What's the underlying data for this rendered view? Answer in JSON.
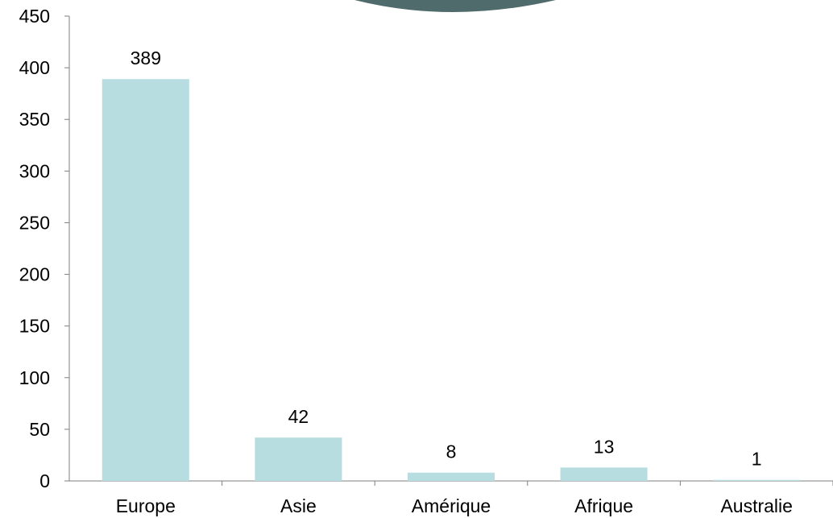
{
  "chart_data": {
    "type": "bar",
    "categories": [
      "Europe",
      "Asie",
      "Amérique",
      "Afrique",
      "Australie"
    ],
    "values": [
      389,
      42,
      8,
      13,
      1
    ],
    "data_labels": [
      "389",
      "42",
      "8",
      "13",
      "1"
    ],
    "title": "",
    "xlabel": "",
    "ylabel": "",
    "ylim": [
      0,
      450
    ],
    "yticks": [
      0,
      50,
      100,
      150,
      200,
      250,
      300,
      350,
      400,
      450
    ],
    "grid": false,
    "legend": "none",
    "colors": {
      "bar": "#b7dde0",
      "axis": "#7f7f7f",
      "text": "#000000",
      "decoration": "#4f6b6b"
    }
  }
}
